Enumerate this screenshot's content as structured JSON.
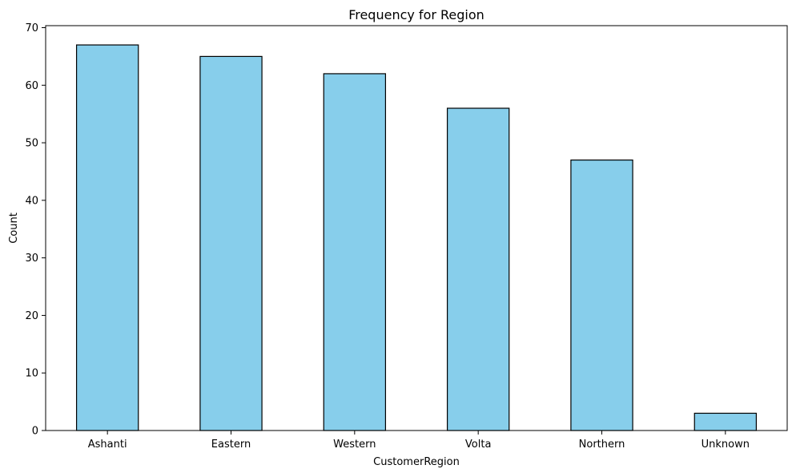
{
  "chart_data": {
    "type": "bar",
    "title": "Frequency for Region",
    "xlabel": "CustomerRegion",
    "ylabel": "Count",
    "categories": [
      "Ashanti",
      "Eastern",
      "Western",
      "Volta",
      "Northern",
      "Unknown"
    ],
    "values": [
      67,
      65,
      62,
      56,
      47,
      3
    ],
    "ylim": [
      0,
      70.35
    ],
    "yticks": [
      0,
      10,
      20,
      30,
      40,
      50,
      60,
      70
    ],
    "grid": false,
    "legend": false,
    "colors": {
      "bar_fill": "#87CEEB",
      "bar_edge": "#000000",
      "axis": "#000000"
    }
  }
}
